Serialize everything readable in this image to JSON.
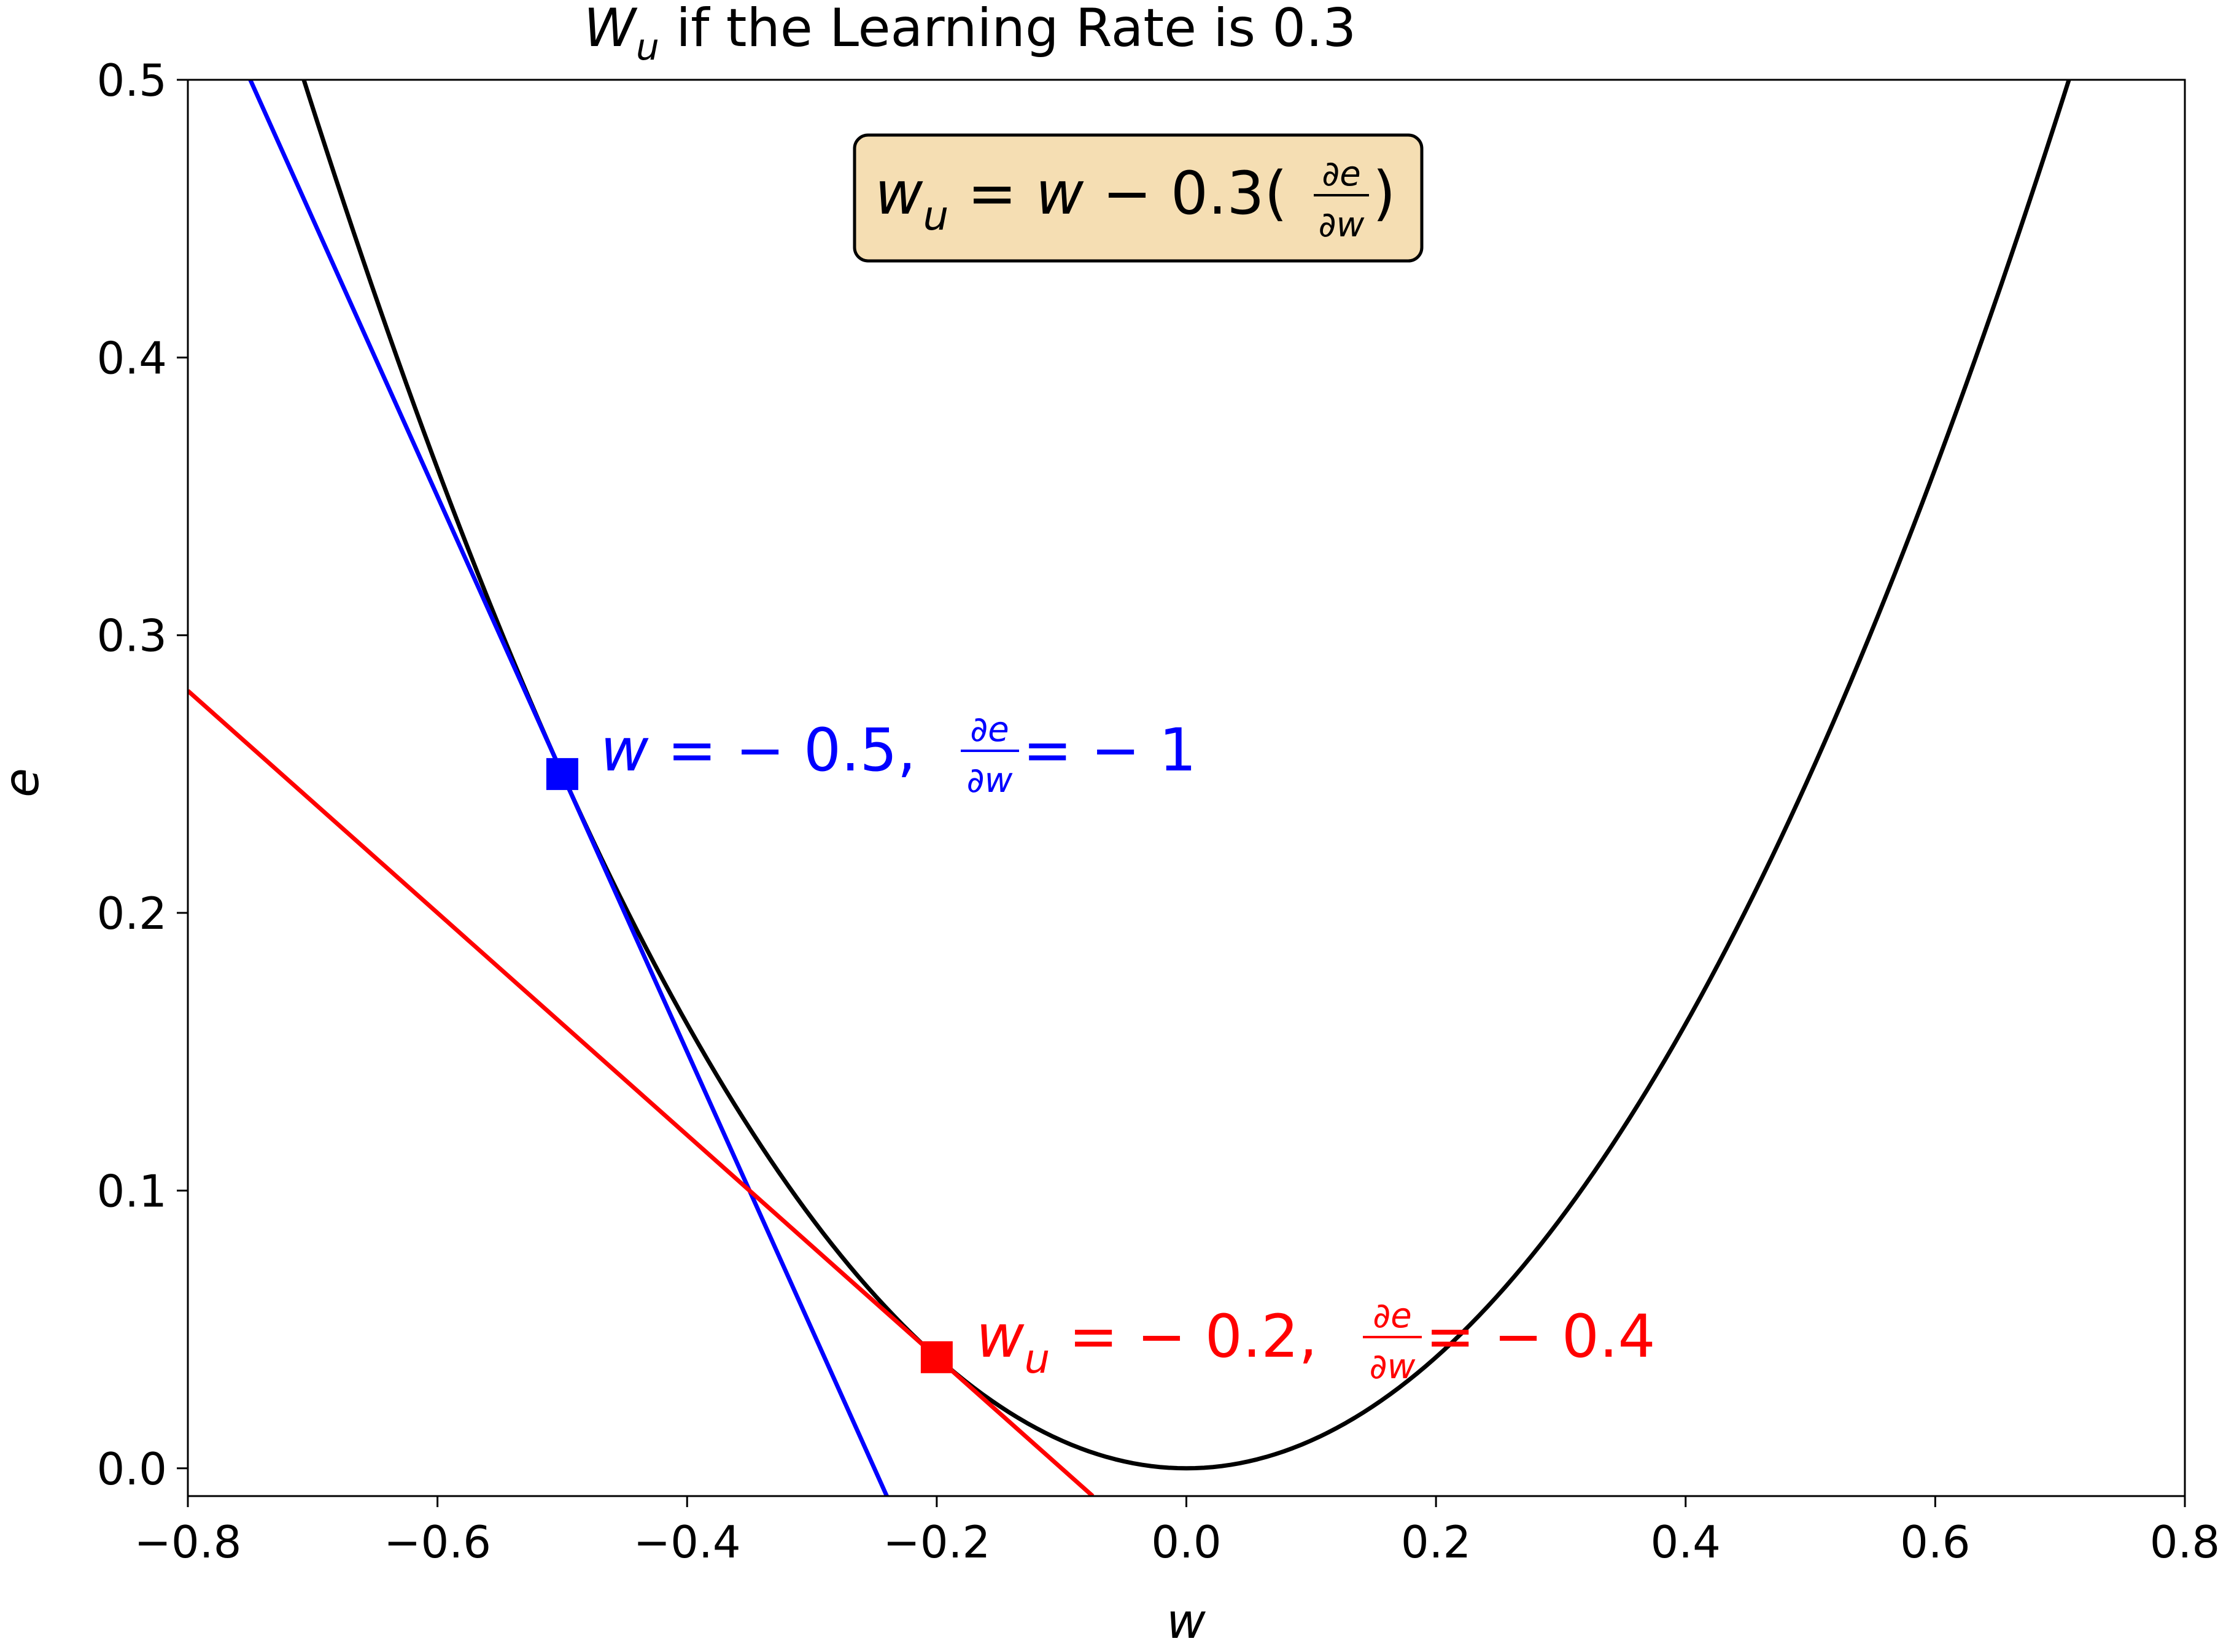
{
  "chart_data": {
    "type": "line",
    "title": {
      "symbol": "W",
      "subscript": "u",
      "rest": " if the Learning Rate is 0.3"
    },
    "xlabel": "w",
    "ylabel": "e",
    "xlim": [
      -0.8,
      0.8
    ],
    "ylim": [
      -0.01,
      0.5
    ],
    "x_ticks": [
      -0.8,
      -0.6,
      -0.4,
      -0.2,
      0.0,
      0.2,
      0.4,
      0.6,
      0.8
    ],
    "x_tick_labels": [
      "−0.8",
      "−0.6",
      "−0.4",
      "−0.2",
      "0.0",
      "0.2",
      "0.4",
      "0.6",
      "0.8"
    ],
    "y_ticks": [
      0.0,
      0.1,
      0.2,
      0.3,
      0.4,
      0.5
    ],
    "y_tick_labels": [
      "0.0",
      "0.1",
      "0.2",
      "0.3",
      "0.4",
      "0.5"
    ],
    "grid": false,
    "series": [
      {
        "kind": "curve",
        "function": "e = w^2",
        "color": "#000000",
        "x": [
          -0.71,
          -0.6,
          -0.5,
          -0.4,
          -0.3,
          -0.2,
          -0.1,
          0.0,
          0.1,
          0.2,
          0.3,
          0.4,
          0.5,
          0.6,
          0.71
        ],
        "y": [
          0.504,
          0.36,
          0.25,
          0.16,
          0.09,
          0.04,
          0.01,
          0.0,
          0.01,
          0.04,
          0.09,
          0.16,
          0.25,
          0.36,
          0.504
        ]
      },
      {
        "kind": "tangent",
        "color": "#0000ff",
        "x": [
          -0.75,
          -0.24
        ],
        "y": [
          0.5,
          -0.01
        ]
      },
      {
        "kind": "tangent",
        "color": "#ff0000",
        "x": [
          -0.8,
          -0.075
        ],
        "y": [
          0.28,
          -0.01
        ]
      }
    ],
    "points": [
      {
        "x": -0.5,
        "y": 0.25,
        "color": "#0000ff",
        "marker": "square",
        "label": {
          "var": "w",
          "sub": "",
          "value_text": " = − 0.5,",
          "deriv_num": "∂e",
          "deriv_den": "∂w",
          "slope_text": " = − 1"
        }
      },
      {
        "x": -0.2,
        "y": 0.04,
        "color": "#ff0000",
        "marker": "square",
        "label": {
          "var": "w",
          "sub": "u",
          "value_text": " = − 0.2,",
          "deriv_num": "∂e",
          "deriv_den": "∂w",
          "slope_text": " = − 0.4"
        }
      }
    ],
    "formula_box": {
      "lhs_var": "w",
      "lhs_sub": "u",
      "rhs_before": " = ",
      "rhs_var": "w",
      "rhs_middle": " − 0.3(",
      "deriv_num": "∂e",
      "deriv_den": "∂w",
      "rhs_end": ")",
      "background": "#f5deb3",
      "border": "#000000"
    }
  }
}
